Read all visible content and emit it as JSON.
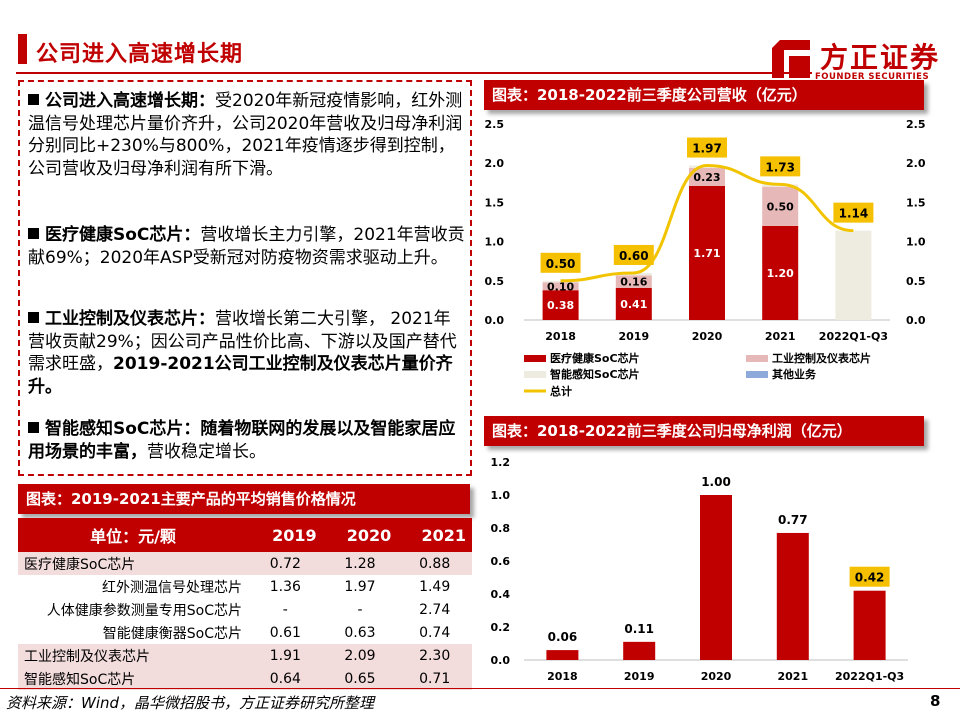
{
  "header": {
    "title": "公司进入高速增长期",
    "logo_cn": "方正证券",
    "logo_en": "FOUNDER SECURITIES"
  },
  "bullets": [
    {
      "bold": "公司进入高速增长期：",
      "text": "受2020年新冠疫情影响，红外测温信号处理芯片量价齐升，公司2020年营收及归母净利润分别同比+230%与800%，2021年疫情逐步得到控制，公司营收及归母净利润有所下滑。",
      "bold_tail": ""
    },
    {
      "bold": "医疗健康SoC芯片：",
      "text": "营收增长主力引擎，2021年营收贡献69%；2020年ASP受新冠对防疫物资需求驱动上升。",
      "bold_tail": ""
    },
    {
      "bold": "工业控制及仪表芯片：",
      "text": "营收增长第二大引擎，  2021年营收贡献29%；因公司产品性价比高、下游以及国产替代需求旺盛，",
      "bold_tail": "2019-2021公司工业控制及仪表芯片量价齐升。"
    },
    {
      "bold": "智能感知SoC芯片：随着物联网的发展以及智能家居应用场景的丰富，",
      "text": "营收稳定增长。",
      "bold_tail": ""
    }
  ],
  "price_table": {
    "title": "图表：2019-2021主要产品的平均销售价格情况",
    "headers": [
      "单位：元/颗",
      "2019",
      "2020",
      "2021"
    ],
    "rows": [
      {
        "label": "医疗健康SoC芯片",
        "values": [
          "0.72",
          "1.28",
          "0.88"
        ],
        "indent": false
      },
      {
        "label": "红外测温信号处理芯片",
        "values": [
          "1.36",
          "1.97",
          "1.49"
        ],
        "indent": true
      },
      {
        "label": "人体健康参数测量专用SoC芯片",
        "values": [
          "-",
          "-",
          "2.74"
        ],
        "indent": true
      },
      {
        "label": "智能健康衡器SoC芯片",
        "values": [
          "0.61",
          "0.63",
          "0.74"
        ],
        "indent": true
      },
      {
        "label": "工业控制及仪表芯片",
        "values": [
          "1.91",
          "2.09",
          "2.30"
        ],
        "indent": false
      },
      {
        "label": "智能感知SoC芯片",
        "values": [
          "0.64",
          "0.65",
          "0.71"
        ],
        "indent": false
      }
    ]
  },
  "footer": {
    "source": "资料来源：Wind，晶华微招股书，方正证券研究所整理",
    "page": "8"
  },
  "colors": {
    "brand_red": "#c00000",
    "medical": "#c00000",
    "industrial": "#e6b9b8",
    "smart": "#eeece1",
    "other": "#8eaadb",
    "total_line": "#f2c400",
    "label_box": "#f5c000"
  },
  "chart_data": [
    {
      "type": "bar",
      "stacked": true,
      "title": "图表：2018-2022前三季度公司营收（亿元）",
      "categories": [
        "2018",
        "2019",
        "2020",
        "2021",
        "2022Q1-Q3"
      ],
      "series": [
        {
          "name": "医疗健康SoC芯片",
          "values": [
            0.38,
            0.41,
            1.71,
            1.2,
            0.0
          ]
        },
        {
          "name": "工业控制及仪表芯片",
          "values": [
            0.1,
            0.16,
            0.23,
            0.5,
            0.0
          ]
        },
        {
          "name": "智能感知SoC芯片",
          "values": [
            0.02,
            0.03,
            0.03,
            0.03,
            1.14
          ]
        },
        {
          "name": "其他业务",
          "values": [
            0.0,
            0.0,
            0.0,
            0.0,
            0.0
          ]
        }
      ],
      "segment_labels": [
        {
          "series": 0,
          "labels": [
            "0.38",
            "0.41",
            "1.71",
            "1.20",
            ""
          ]
        },
        {
          "series": 1,
          "labels": [
            "0.10",
            "0.16",
            "0.23",
            "0.50",
            ""
          ]
        }
      ],
      "total": {
        "name": "总计",
        "values": [
          0.5,
          0.6,
          1.97,
          1.73,
          1.14
        ],
        "labels": [
          "0.50",
          "0.60",
          "1.97",
          "1.73",
          "1.14"
        ]
      },
      "ylim": [
        0,
        2.5
      ],
      "yticks": [
        "0.0",
        "0.5",
        "1.0",
        "1.5",
        "2.0",
        "2.5"
      ],
      "y2ticks": [
        "0.0",
        "0.5",
        "1.0",
        "1.5",
        "2.0",
        "2.5"
      ],
      "legend": [
        "医疗健康SoC芯片",
        "工业控制及仪表芯片",
        "智能感知SoC芯片",
        "其他业务",
        "总计"
      ]
    },
    {
      "type": "bar",
      "title": "图表：2018-2022前三季度公司归母净利润（亿元）",
      "categories": [
        "2018",
        "2019",
        "2020",
        "2021",
        "2022Q1-Q3"
      ],
      "values": [
        0.06,
        0.11,
        1.0,
        0.77,
        0.42
      ],
      "labels": [
        "0.06",
        "0.11",
        "1.00",
        "0.77",
        "0.42"
      ],
      "highlight_last": true,
      "ylim": [
        0,
        1.2
      ],
      "yticks": [
        "0.0",
        "0.2",
        "0.4",
        "0.6",
        "0.8",
        "1.0",
        "1.2"
      ]
    }
  ]
}
